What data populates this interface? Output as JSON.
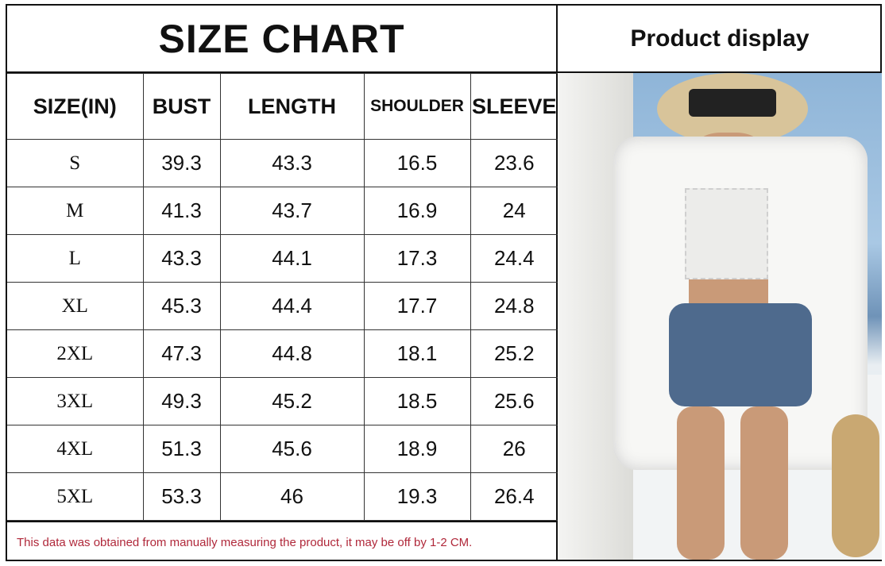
{
  "title": "SIZE CHART",
  "headers": [
    "SIZE(IN)",
    "BUST",
    "LENGTH",
    "SHOULDER",
    "SLEEVE"
  ],
  "rows": [
    [
      "S",
      "39.3",
      "43.3",
      "16.5",
      "23.6"
    ],
    [
      "M",
      "41.3",
      "43.7",
      "16.9",
      "24"
    ],
    [
      "L",
      "43.3",
      "44.1",
      "17.3",
      "24.4"
    ],
    [
      "XL",
      "45.3",
      "44.4",
      "17.7",
      "24.8"
    ],
    [
      "2XL",
      "47.3",
      "44.8",
      "18.1",
      "25.2"
    ],
    [
      "3XL",
      "49.3",
      "45.2",
      "18.5",
      "25.6"
    ],
    [
      "4XL",
      "51.3",
      "45.6",
      "18.9",
      "26"
    ],
    [
      "5XL",
      "53.3",
      "46",
      "19.3",
      "26.4"
    ]
  ],
  "note": "This data was obtained from manually measuring the product, it may be off by 1-2 CM.",
  "product_title": "Product display",
  "colors": {
    "note": "#b0283a",
    "border": "#111111"
  }
}
